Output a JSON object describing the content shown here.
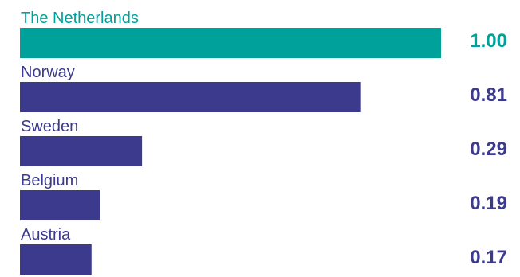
{
  "chart_data": {
    "type": "bar",
    "orientation": "horizontal",
    "categories": [
      "The Netherlands",
      "Norway",
      "Sweden",
      "Belgium",
      "Austria"
    ],
    "values": [
      1.0,
      0.81,
      0.29,
      0.19,
      0.17
    ],
    "value_labels": [
      "1.00",
      "0.81",
      "0.29",
      "0.19",
      "0.17"
    ],
    "title": "",
    "xlabel": "",
    "ylabel": "",
    "xlim": [
      0,
      1.0
    ],
    "grid": false,
    "legend": "none",
    "highlight_category": "The Netherlands"
  },
  "colors": {
    "highlight": "#00a19a",
    "default": "#3c3a8d",
    "highlight_text": "#00a19a",
    "default_text": "#3c3a8d"
  }
}
